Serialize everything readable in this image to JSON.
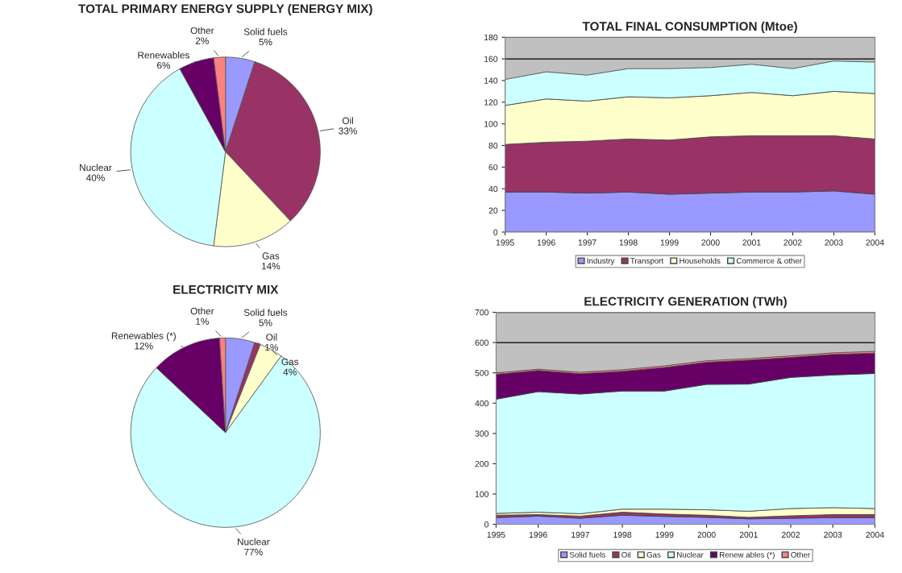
{
  "chart_data": [
    {
      "type": "pie",
      "title": "TOTAL PRIMARY ENERGY SUPPLY (ENERGY MIX)",
      "categories": [
        "Solid fuels",
        "Oil",
        "Gas",
        "Nuclear",
        "Renewables",
        "Other"
      ],
      "values": [
        5,
        33,
        14,
        40,
        6,
        2
      ],
      "value_labels": [
        "5%",
        "33%",
        "14%",
        "40%",
        "6%",
        "2%"
      ],
      "colors": [
        "#9999ff",
        "#993366",
        "#ffffcc",
        "#ccffff",
        "#660066",
        "#ff8080"
      ]
    },
    {
      "type": "area",
      "stacked": true,
      "title": "TOTAL FINAL CONSUMPTION (Mtoe)",
      "x": [
        1995,
        1996,
        1997,
        1998,
        1999,
        2000,
        2001,
        2002,
        2003,
        2004
      ],
      "xlim": [
        1995,
        2004
      ],
      "xticks": [
        1995,
        1996,
        1997,
        1998,
        1999,
        2000,
        2001,
        2002,
        2003,
        2004
      ],
      "ylim": [
        0,
        180
      ],
      "yticks": [
        0,
        20,
        40,
        60,
        80,
        100,
        120,
        140,
        160,
        180
      ],
      "grid": "y",
      "legend": "bottom",
      "series": [
        {
          "name": "Industry",
          "color": "#9999ff",
          "values": [
            37,
            37,
            36,
            37,
            35,
            36,
            37,
            37,
            38,
            35
          ]
        },
        {
          "name": "Transport",
          "color": "#993366",
          "values": [
            44,
            46,
            48,
            49,
            50,
            52,
            52,
            52,
            51,
            51
          ]
        },
        {
          "name": "Households",
          "color": "#ffffcc",
          "values": [
            36,
            40,
            37,
            39,
            39,
            38,
            40,
            37,
            41,
            42
          ]
        },
        {
          "name": "Commerce & other",
          "color": "#ccffff",
          "values": [
            24,
            25,
            24,
            26,
            27,
            26,
            26,
            25,
            28,
            29
          ]
        }
      ]
    },
    {
      "type": "pie",
      "title": "ELECTRICITY MIX",
      "categories": [
        "Solid fuels",
        "Oil",
        "Gas",
        "Nuclear",
        "Renewables (*)",
        "Other"
      ],
      "values": [
        5,
        1,
        4,
        77,
        12,
        1
      ],
      "value_labels": [
        "5%",
        "1%",
        "4%",
        "77%",
        "12%",
        "1%"
      ],
      "colors": [
        "#9999ff",
        "#993366",
        "#ffffcc",
        "#ccffff",
        "#660066",
        "#ff8080"
      ]
    },
    {
      "type": "area",
      "stacked": true,
      "title": "ELECTRICITY GENERATION (TWh)",
      "x": [
        1995,
        1996,
        1997,
        1998,
        1999,
        2000,
        2001,
        2002,
        2003,
        2004
      ],
      "xlim": [
        1995,
        2004
      ],
      "xticks": [
        1995,
        1996,
        1997,
        1998,
        1999,
        2000,
        2001,
        2002,
        2003,
        2004
      ],
      "ylim": [
        0,
        700
      ],
      "yticks": [
        0,
        100,
        200,
        300,
        400,
        500,
        600,
        700
      ],
      "grid": "y",
      "legend": "bottom",
      "series": [
        {
          "name": "Solid fuels",
          "color": "#9999ff",
          "values": [
            22,
            27,
            20,
            30,
            26,
            23,
            18,
            20,
            22,
            22
          ]
        },
        {
          "name": "Oil",
          "color": "#993366",
          "values": [
            8,
            5,
            7,
            10,
            8,
            7,
            5,
            8,
            10,
            10
          ]
        },
        {
          "name": "Gas",
          "color": "#ffffcc",
          "values": [
            6,
            8,
            8,
            10,
            16,
            18,
            20,
            24,
            23,
            20
          ]
        },
        {
          "name": "Nuclear",
          "color": "#ccffff",
          "values": [
            377,
            398,
            395,
            390,
            390,
            414,
            420,
            433,
            438,
            446
          ]
        },
        {
          "name": "Renew ables (*)",
          "color": "#660066",
          "values": [
            82,
            70,
            67,
            65,
            78,
            73,
            79,
            66,
            68,
            67
          ]
        },
        {
          "name": "Other",
          "color": "#ff8080",
          "values": [
            5,
            4,
            5,
            5,
            5,
            5,
            5,
            5,
            5,
            6
          ]
        }
      ]
    }
  ]
}
